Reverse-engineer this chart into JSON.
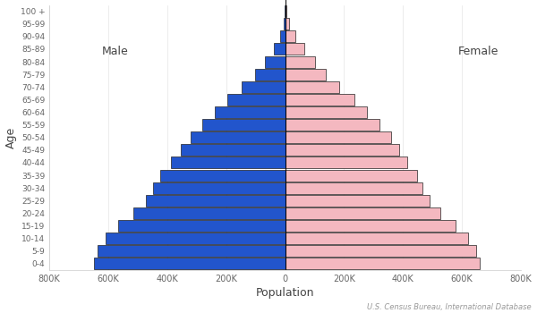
{
  "age_groups": [
    "0-4",
    "5-9",
    "10-14",
    "15-19",
    "20-24",
    "25-29",
    "30-34",
    "35-39",
    "40-44",
    "45-49",
    "50-54",
    "55-59",
    "60-64",
    "65-69",
    "70-74",
    "75-79",
    "80-84",
    "85-89",
    "90-94",
    "95-99",
    "100 +"
  ],
  "male": [
    648000,
    636000,
    610000,
    568000,
    515000,
    472000,
    449000,
    423000,
    387000,
    354000,
    320000,
    281000,
    238000,
    195000,
    148000,
    102000,
    68000,
    38000,
    16000,
    6000,
    1500
  ],
  "female": [
    660000,
    648000,
    622000,
    578000,
    526000,
    490000,
    466000,
    447000,
    415000,
    388000,
    358000,
    319000,
    276000,
    235000,
    183000,
    137000,
    101000,
    66000,
    34000,
    13000,
    3500
  ],
  "male_color": "#2255cc",
  "female_color": "#f4b8c0",
  "bar_edgecolor": "#222222",
  "bar_linewidth": 0.5,
  "xlabel": "Population",
  "ylabel": "Age",
  "male_label": "Male",
  "female_label": "Female",
  "xlim": 800000,
  "tick_labels": [
    "800K",
    "600K",
    "400K",
    "200K",
    "0",
    "200K",
    "400K",
    "600K",
    "800K"
  ],
  "source_text": "U.S. Census Bureau, International Database",
  "bg_color": "#ffffff",
  "font_color": "#666666",
  "label_font_color": "#444444"
}
